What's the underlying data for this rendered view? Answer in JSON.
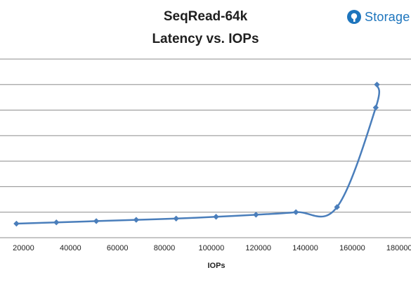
{
  "chart_data": {
    "type": "line",
    "title": "SeqRead-64k",
    "subtitle": "Latency vs. IOPs",
    "xlabel": "IOPs",
    "ylabel": "",
    "xlim": [
      10000,
      185000
    ],
    "ylim": [
      0,
      7
    ],
    "x_ticks": [
      "20000",
      "40000",
      "60000",
      "80000",
      "100000",
      "120000",
      "140000",
      "160000",
      "180000"
    ],
    "grid": true,
    "legend": "none",
    "series": [
      {
        "color": "#4a7ebb",
        "marker": "diamond",
        "points": [
          {
            "x": 17000,
            "y": 0.55
          },
          {
            "x": 34000,
            "y": 0.6
          },
          {
            "x": 51000,
            "y": 0.65
          },
          {
            "x": 68000,
            "y": 0.7
          },
          {
            "x": 85000,
            "y": 0.75
          },
          {
            "x": 102000,
            "y": 0.82
          },
          {
            "x": 119000,
            "y": 0.9
          },
          {
            "x": 136000,
            "y": 1.0
          },
          {
            "x": 153500,
            "y": 1.2
          },
          {
            "x": 170000,
            "y": 5.1
          },
          {
            "x": 170500,
            "y": 6.0
          }
        ]
      }
    ]
  },
  "logo": {
    "text": "Storage",
    "color": "#1d75bd"
  }
}
